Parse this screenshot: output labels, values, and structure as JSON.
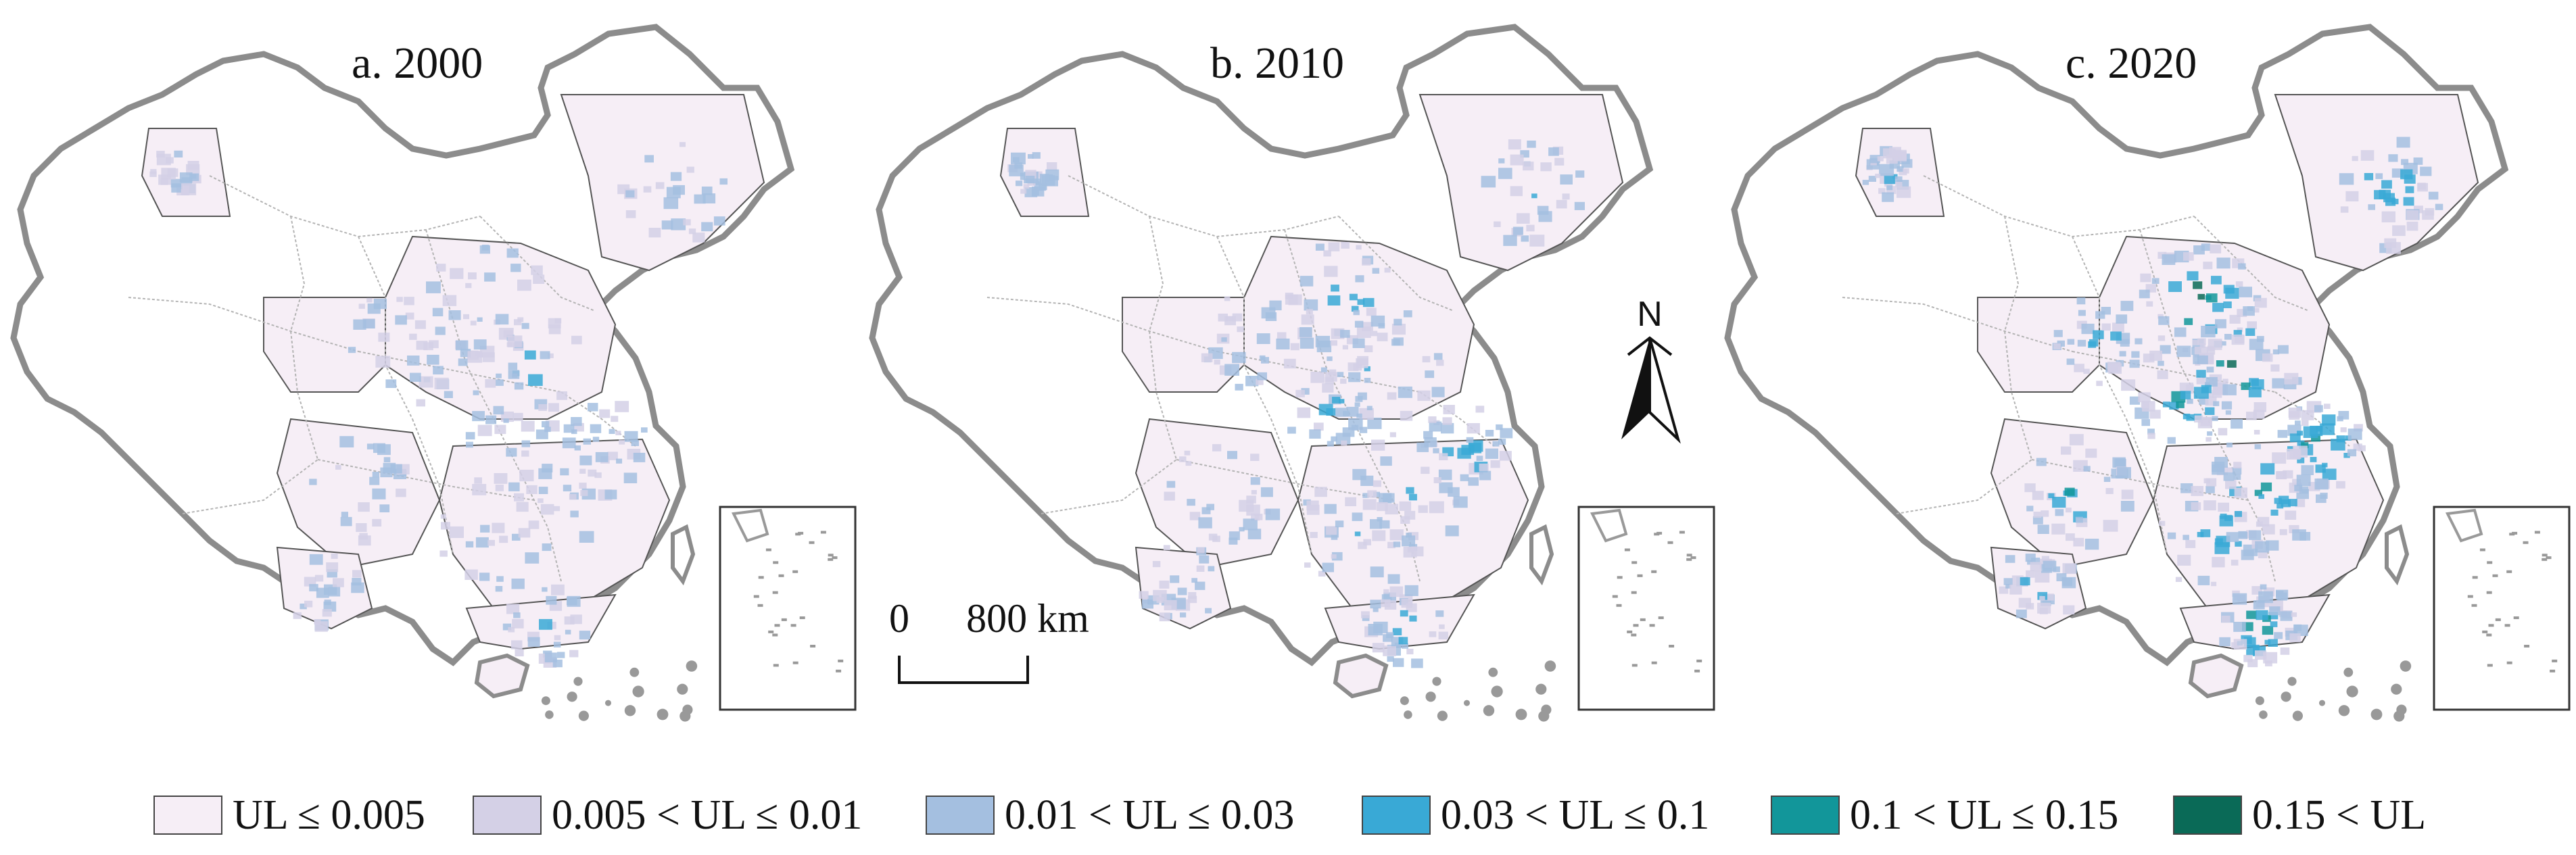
{
  "panels": [
    {
      "id": "a",
      "title": "a. 2000",
      "intensity": 0.45
    },
    {
      "id": "b",
      "title": "b. 2010",
      "intensity": 0.65
    },
    {
      "id": "c",
      "title": "c. 2020",
      "intensity": 1.0
    }
  ],
  "north_arrow": {
    "label": "N",
    "icon": "north-arrow-icon"
  },
  "scale_bar": {
    "start_label": "0",
    "end_label": "800 km"
  },
  "legend": {
    "items": [
      {
        "label": "UL ≤ 0.005",
        "color": "#f6eef6"
      },
      {
        "label": "0.005 < UL ≤ 0.01",
        "color": "#d4d0e6"
      },
      {
        "label": "0.01 < UL ≤ 0.03",
        "color": "#a4bfe0"
      },
      {
        "label": "0.03 < UL ≤ 0.1",
        "color": "#39a9d6"
      },
      {
        "label": "0.1 < UL ≤ 0.15",
        "color": "#12969a"
      },
      {
        "label": "0.15 < UL",
        "color": "#0a6a57"
      }
    ]
  },
  "colors": {
    "border": "#8c8c8c",
    "province_line": "#b4b4b4",
    "background": "#ffffff"
  }
}
